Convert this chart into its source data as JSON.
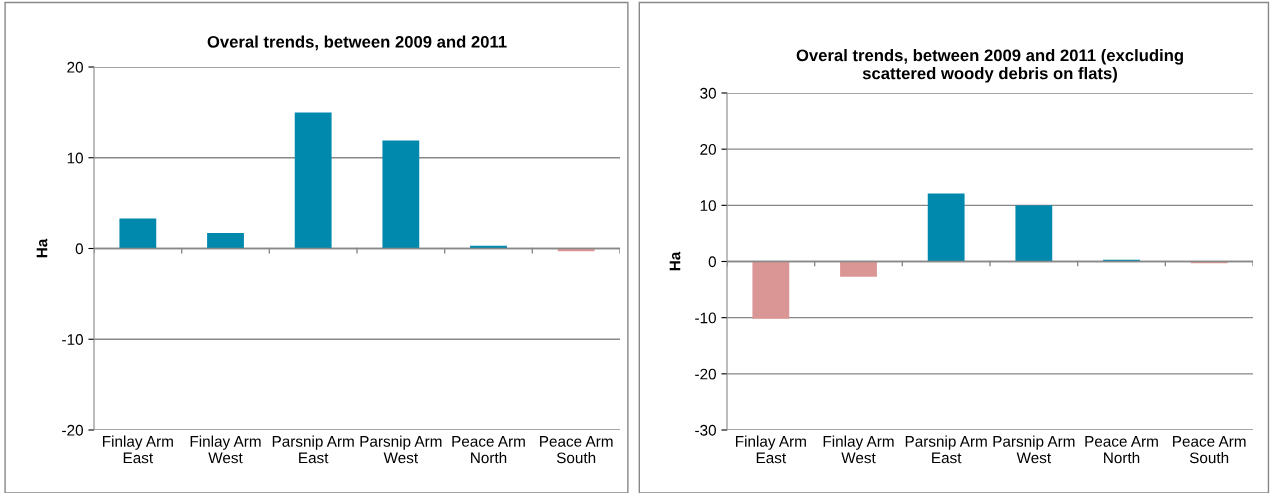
{
  "chart_data": [
    {
      "type": "bar",
      "title": "Overal trends, between 2009 and 2011",
      "ylabel": "Ha",
      "categories": [
        "Finlay Arm\nEast",
        "Finlay Arm\nWest",
        "Parsnip Arm\nEast",
        "Parsnip Arm\nWest",
        "Peace Arm\nNorth",
        "Peace Arm\nSouth"
      ],
      "values": [
        3.3,
        1.7,
        15.0,
        11.9,
        0.3,
        -0.3
      ],
      "colors": [
        "#0089ad",
        "#0089ad",
        "#0089ad",
        "#0089ad",
        "#0089ad",
        "#d99694"
      ],
      "ylim": [
        -20,
        20
      ],
      "yticks": [
        -20,
        -10,
        0,
        10,
        20
      ],
      "grid": "y",
      "legend": false
    },
    {
      "type": "bar",
      "title": "Overal trends, between 2009 and 2011 (excluding\nscattered woody debris on flats)",
      "ylabel": "Ha",
      "categories": [
        "Finlay Arm\nEast",
        "Finlay Arm\nWest",
        "Parsnip Arm\nEast",
        "Parsnip Arm\nWest",
        "Peace Arm\nNorth",
        "Peace Arm\nSouth"
      ],
      "values": [
        -10.2,
        -2.7,
        12.1,
        10.0,
        0.3,
        -0.3
      ],
      "colors": [
        "#d99694",
        "#d99694",
        "#0089ad",
        "#0089ad",
        "#0089ad",
        "#d99694"
      ],
      "ylim": [
        -30,
        30
      ],
      "yticks": [
        -30,
        -20,
        -10,
        0,
        10,
        20,
        30
      ],
      "grid": "y",
      "legend": false
    }
  ]
}
